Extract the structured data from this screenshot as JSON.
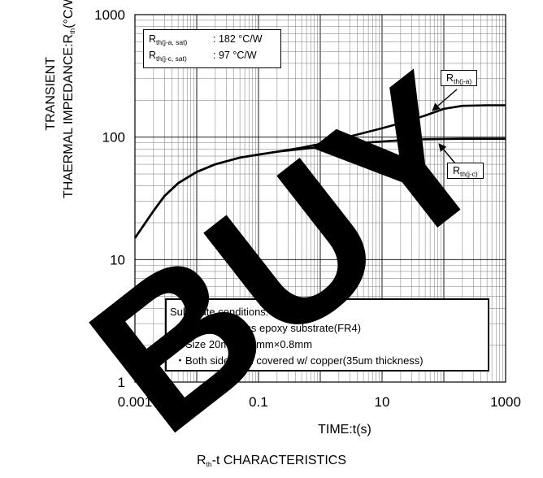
{
  "chart_data": {
    "type": "line",
    "x_scale": "log",
    "y_scale": "log",
    "xlim": [
      0.001,
      1000
    ],
    "ylim": [
      1,
      1000
    ],
    "x_ticks": [
      "0.001",
      "0.1",
      "10",
      "1000"
    ],
    "y_ticks": [
      "1",
      "10",
      "100",
      "1000"
    ],
    "xlabel": "TIME:t(s)",
    "ylabel_line1": "TRANSIENT",
    "ylabel_line2_main": "THAERMAL IMPEDANCE:R",
    "ylabel_line2_sub": "th",
    "ylabel_line2_unit": "(°C/W)",
    "caption_main": "R",
    "caption_sub": "th",
    "caption_rest": "-t CHARACTERISTICS",
    "grid": true,
    "series": [
      {
        "name": "R th(j-a)",
        "x": [
          0.001,
          0.002,
          0.003,
          0.005,
          0.01,
          0.02,
          0.05,
          0.1,
          0.2,
          0.5,
          1,
          2,
          5,
          10,
          20,
          50,
          100,
          200,
          500,
          1000
        ],
        "y": [
          15,
          25,
          33,
          42,
          52,
          60,
          68,
          72,
          76,
          82,
          88,
          96,
          108,
          118,
          130,
          150,
          170,
          180,
          182,
          182
        ]
      },
      {
        "name": "R th(j-c)",
        "x": [
          0.001,
          0.002,
          0.003,
          0.005,
          0.01,
          0.02,
          0.05,
          0.1,
          0.2,
          0.5,
          1,
          2,
          5,
          10,
          20,
          50,
          100,
          200,
          500,
          1000
        ],
        "y": [
          15,
          25,
          33,
          42,
          52,
          60,
          68,
          72,
          76,
          80,
          83,
          86,
          90,
          92,
          94,
          96,
          96.5,
          97,
          97,
          97
        ]
      }
    ],
    "info_box": {
      "line1_main": "R",
      "line1_sub": "th(j-a, sat)",
      "line1_value": ":  182 °C/W",
      "line2_main": "R",
      "line2_sub": "th(j-c, sat)",
      "line2_value": ":   97 °C/W"
    },
    "callouts": {
      "ja_main": "R",
      "ja_sub": "th(j-a)",
      "jc_main": "R",
      "jc_sub": "th(j-c)"
    },
    "substrate": {
      "title": "Substrate conditions:",
      "items": [
        "・Material : glass epoxy substrate(FR4)",
        "・Size 20mm×20mm×0.8mm",
        "・Both side is all covered w/ copper(35um thickness)"
      ]
    },
    "watermark": "BUY",
    "colors": {
      "line": "#000000",
      "grid": "#777777",
      "watermark": "#000000"
    }
  }
}
